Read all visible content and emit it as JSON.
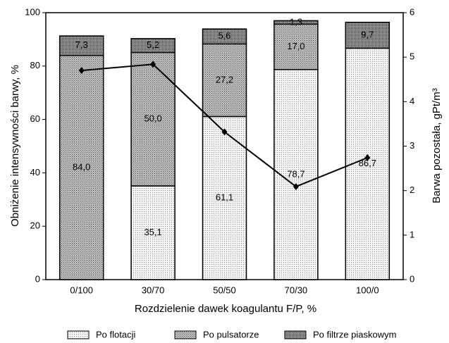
{
  "chart_data": {
    "type": "bar",
    "stacked": true,
    "categories": [
      "0/100",
      "30/70",
      "50/50",
      "70/30",
      "100/0"
    ],
    "series": [
      {
        "name": "Po flotacji",
        "color": "#e2e2e2",
        "values": [
          null,
          35.1,
          61.1,
          78.7,
          86.7
        ],
        "value_labels": [
          null,
          "35,1",
          "61,1",
          "78,7",
          "86,7"
        ]
      },
      {
        "name": "Po pulsatorze",
        "color": "#b4b4b4",
        "values": [
          84.0,
          50.0,
          27.2,
          17.0,
          null
        ],
        "value_labels": [
          "84,0",
          "50,0",
          "27,2",
          "17,0",
          null
        ]
      },
      {
        "name": "Po filtrze piaskowym",
        "color": "#8a8a8a",
        "values": [
          7.3,
          5.2,
          5.6,
          1.3,
          9.7
        ],
        "value_labels": [
          "7,3",
          "5,2",
          "5,6",
          "1,3",
          "9,7"
        ]
      }
    ],
    "line": {
      "type": "line",
      "axis": "y2",
      "color": "#000000",
      "values": [
        4.7,
        4.84,
        3.32,
        2.09,
        2.74
      ]
    },
    "xlabel": "Rozdzielenie dawek koagulantu F/P, %",
    "ylabel": "Obniżenie intensywności barwy, %",
    "y2label": "Barwa pozostała, gPt/m³",
    "ylim": [
      0,
      100
    ],
    "yticks": [
      0,
      20,
      40,
      60,
      80,
      100
    ],
    "y2lim": [
      0,
      6
    ],
    "y2ticks": [
      0,
      1,
      2,
      3,
      4,
      5,
      6
    ],
    "legend": "bottom"
  }
}
